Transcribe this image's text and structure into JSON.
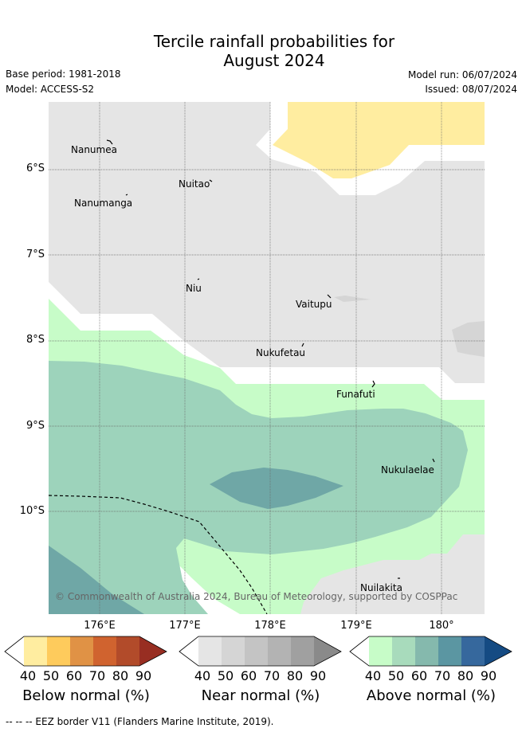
{
  "header": {
    "title_line1": "Tercile rainfall probabilities for",
    "title_line2": "August 2024",
    "base_period": "Base period: 1981-2018",
    "model": "Model: ACCESS-S2",
    "model_run": "Model run: 06/07/2024",
    "issued": "Issued: 08/07/2024"
  },
  "map": {
    "lat_labels": [
      "6°S",
      "7°S",
      "8°S",
      "9°S",
      "10°S"
    ],
    "lon_labels": [
      "176°E",
      "177°E",
      "178°E",
      "179°E",
      "180°"
    ],
    "places": [
      "Nanumea",
      "Nuitao",
      "Nanumanga",
      "Niu",
      "Vaitupu",
      "Nukufetau",
      "Funafuti",
      "Nukulaelae",
      "Nuilakita"
    ],
    "copyright": "© Commonwealth of Australia 2024, Bureau of Meteorology, supported by COSPPac",
    "colors": {
      "near_normal": "#e5e5e5",
      "below_40": "#ffeda0",
      "above_40": "#c7fcc8",
      "above_50": "#9dd3bb",
      "above_60": "#6fa7a6"
    }
  },
  "legend": {
    "ticks": [
      "40",
      "50",
      "60",
      "70",
      "80",
      "90"
    ],
    "below": {
      "title": "Below normal (%)",
      "colors": [
        "#ffffff",
        "#ffeda0",
        "#fecb5c",
        "#e09245",
        "#d0632f",
        "#b24b2a",
        "#982e22"
      ]
    },
    "near": {
      "title": "Near normal (%)",
      "colors": [
        "#ffffff",
        "#e5e5e5",
        "#d5d5d5",
        "#c4c4c4",
        "#b3b3b3",
        "#a0a0a0",
        "#8a8a8a"
      ]
    },
    "above": {
      "title": "Above normal (%)",
      "colors": [
        "#ffffff",
        "#c7fcc8",
        "#a8dbbc",
        "#85b9ad",
        "#5b96a2",
        "#36689d",
        "#154b83"
      ]
    }
  },
  "footer": {
    "eez_text": "-- -- -- EEZ border V11 (Flanders Marine Institute, 2019)."
  }
}
